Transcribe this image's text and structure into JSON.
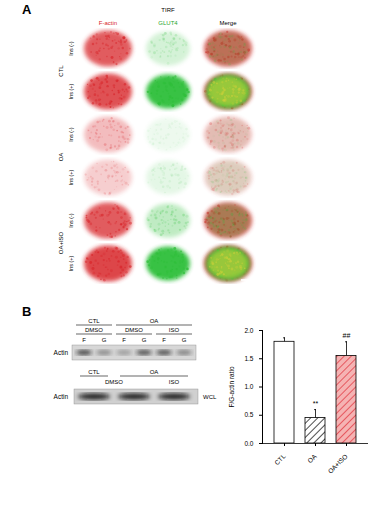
{
  "panel_a": {
    "letter": "A",
    "header": "TIRF",
    "columns": [
      "F-actin",
      "GLUT4",
      "Merge"
    ],
    "groups": [
      {
        "name": "CTL",
        "rows": [
          "Ins (-)",
          "Ins (+)"
        ]
      },
      {
        "name": "OA",
        "rows": [
          "Ins (-)",
          "Ins (+)"
        ]
      },
      {
        "name": "OA+ISO",
        "rows": [
          "Ins (-)",
          "Ins (+)"
        ]
      }
    ]
  },
  "panel_b": {
    "letter": "B",
    "fractionation_blot": {
      "groups": [
        "CTL",
        "OA"
      ],
      "treatments": [
        "DMSO",
        "DMSO",
        "ISO"
      ],
      "lanes": [
        "F",
        "G",
        "F",
        "G",
        "F",
        "G"
      ],
      "row_label": "Actin"
    },
    "lysate_blot": {
      "groups": [
        "CTL",
        "OA"
      ],
      "treatments": [
        "DMSO",
        "ISO"
      ],
      "row_label": "Actin",
      "tag": "WCL"
    }
  },
  "chart_data": {
    "type": "bar",
    "categories": [
      "CTL",
      "OA",
      "OA+ISO"
    ],
    "values": [
      1.8,
      0.45,
      1.55
    ],
    "errors": [
      0.07,
      0.15,
      0.25
    ],
    "annotations": [
      null,
      "**",
      "##"
    ],
    "colors": [
      "#ffffff",
      "#ffffff",
      "#f5b3b3"
    ],
    "ylabel": "F/G-actin ratio",
    "ylim": [
      0,
      2.0
    ],
    "yticks": [
      {
        "value": 0,
        "label": "0.0"
      },
      {
        "value": 0.5,
        "label": "0.5"
      },
      {
        "value": 1.0,
        "label": "1.0"
      },
      {
        "value": 1.5,
        "label": "1.5"
      },
      {
        "value": 2.0,
        "label": "2.0"
      }
    ],
    "grid": false
  }
}
